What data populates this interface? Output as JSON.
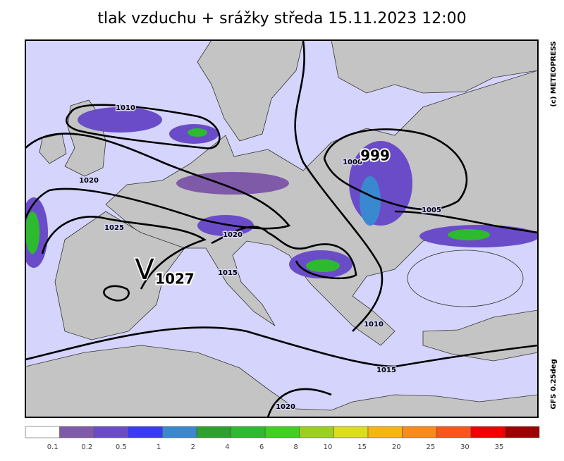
{
  "title": "tlak vzduchu + srážky  středa 15.11.2023 12:00",
  "credit": "(c) METEOPRESS",
  "model": "GFS 0.25deg",
  "pressure_centers": [
    {
      "symbol": "V",
      "label": "1027"
    },
    {
      "label": "999"
    }
  ],
  "isobar_labels": [
    "1010",
    "1020",
    "1025",
    "1020",
    "1015",
    "1000",
    "1005",
    "1010",
    "1015",
    "1020"
  ],
  "legend": {
    "colors": [
      "#ffffff",
      "#7e5aa8",
      "#6a4cc8",
      "#3a3af0",
      "#3a88d0",
      "#2ea02e",
      "#2eba2e",
      "#40d020",
      "#9cd020",
      "#dcdc20",
      "#f8b414",
      "#f88a1e",
      "#f8561a",
      "#f00000",
      "#9c0000"
    ],
    "labels": [
      "0.1",
      "0.2",
      "0.5",
      "1",
      "2",
      "4",
      "6",
      "8",
      "10",
      "15",
      "20",
      "25",
      "30",
      "35"
    ]
  }
}
